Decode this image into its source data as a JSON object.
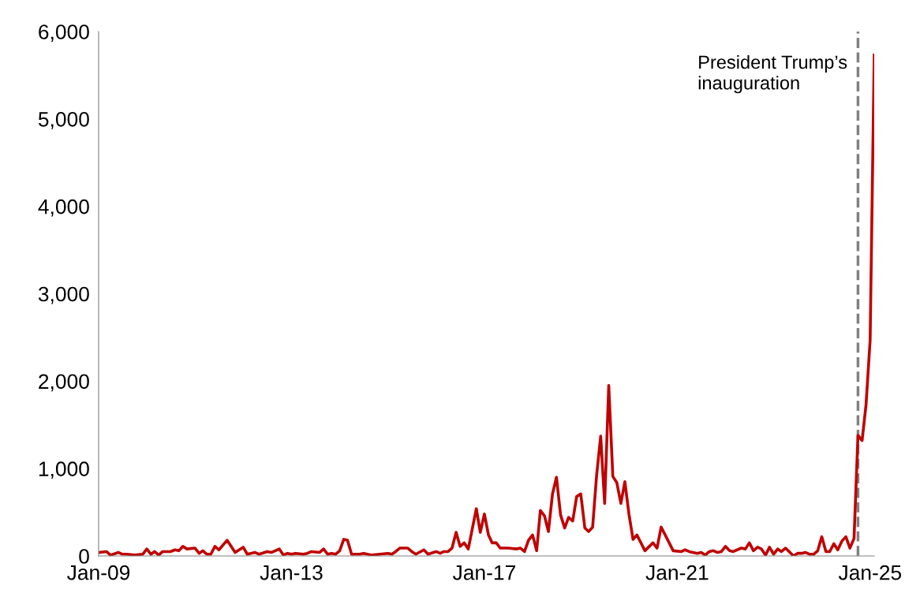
{
  "chart_data": {
    "type": "line",
    "x": [
      "2009-01",
      "2009-03",
      "2009-04",
      "2009-06",
      "2009-07",
      "2009-08",
      "2009-10",
      "2009-12",
      "2010-01",
      "2010-02",
      "2010-03",
      "2010-04",
      "2010-05",
      "2010-07",
      "2010-08",
      "2010-09",
      "2010-10",
      "2010-11",
      "2011-01",
      "2011-02",
      "2011-03",
      "2011-04",
      "2011-05",
      "2011-06",
      "2011-07",
      "2011-09",
      "2011-11",
      "2012-01",
      "2012-02",
      "2012-04",
      "2012-05",
      "2012-07",
      "2012-08",
      "2012-10",
      "2012-11",
      "2012-12",
      "2013-01",
      "2013-02",
      "2013-04",
      "2013-05",
      "2013-06",
      "2013-08",
      "2013-09",
      "2013-10",
      "2013-11",
      "2013-12",
      "2014-01",
      "2014-02",
      "2014-03",
      "2014-04",
      "2014-06",
      "2014-07",
      "2014-09",
      "2014-11",
      "2015-01",
      "2015-02",
      "2015-03",
      "2015-04",
      "2015-06",
      "2015-07",
      "2015-08",
      "2015-10",
      "2015-11",
      "2016-01",
      "2016-02",
      "2016-03",
      "2016-04",
      "2016-05",
      "2016-06",
      "2016-07",
      "2016-08",
      "2016-09",
      "2016-11",
      "2016-12",
      "2017-01",
      "2017-02",
      "2017-03",
      "2017-04",
      "2017-05",
      "2017-07",
      "2017-09",
      "2017-10",
      "2017-11",
      "2017-12",
      "2018-01",
      "2018-02",
      "2018-03",
      "2018-04",
      "2018-05",
      "2018-06",
      "2018-07",
      "2018-08",
      "2018-09",
      "2018-10",
      "2018-11",
      "2018-12",
      "2019-01",
      "2019-02",
      "2019-03",
      "2019-04",
      "2019-05",
      "2019-06",
      "2019-07",
      "2019-08",
      "2019-09",
      "2019-10",
      "2019-11",
      "2019-12",
      "2020-01",
      "2020-02",
      "2020-03",
      "2020-04",
      "2020-05",
      "2020-07",
      "2020-08",
      "2020-09",
      "2020-11",
      "2020-12",
      "2021-02",
      "2021-03",
      "2021-04",
      "2021-06",
      "2021-07",
      "2021-08",
      "2021-09",
      "2021-10",
      "2021-11",
      "2021-12",
      "2022-01",
      "2022-02",
      "2022-03",
      "2022-05",
      "2022-06",
      "2022-07",
      "2022-08",
      "2022-09",
      "2022-10",
      "2022-11",
      "2022-12",
      "2023-01",
      "2023-02",
      "2023-03",
      "2023-04",
      "2023-06",
      "2023-07",
      "2023-08",
      "2023-09",
      "2023-10",
      "2023-11",
      "2023-12",
      "2024-01",
      "2024-02",
      "2024-03",
      "2024-04",
      "2024-05",
      "2024-06",
      "2024-07",
      "2024-08",
      "2024-09",
      "2024-10",
      "2024-11",
      "2024-12",
      "2025-01",
      "2025-02"
    ],
    "series": [
      {
        "color": "#c00000",
        "values": [
          40,
          50,
          10,
          40,
          20,
          20,
          10,
          20,
          80,
          20,
          50,
          10,
          50,
          50,
          70,
          60,
          110,
          80,
          90,
          30,
          60,
          20,
          20,
          110,
          70,
          180,
          40,
          100,
          20,
          40,
          20,
          50,
          40,
          80,
          10,
          30,
          20,
          30,
          20,
          30,
          50,
          40,
          80,
          20,
          30,
          20,
          60,
          190,
          180,
          20,
          20,
          30,
          10,
          20,
          30,
          20,
          50,
          90,
          90,
          50,
          20,
          70,
          20,
          50,
          30,
          50,
          50,
          90,
          270,
          110,
          150,
          80,
          540,
          270,
          480,
          240,
          150,
          150,
          90,
          90,
          80,
          90,
          50,
          180,
          240,
          60,
          520,
          460,
          280,
          710,
          900,
          470,
          320,
          440,
          400,
          680,
          710,
          320,
          280,
          330,
          920,
          1370,
          600,
          1950,
          910,
          840,
          600,
          850,
          480,
          190,
          240,
          150,
          60,
          150,
          90,
          330,
          150,
          60,
          50,
          70,
          50,
          30,
          40,
          10,
          50,
          60,
          40,
          50,
          110,
          60,
          50,
          90,
          80,
          150,
          60,
          100,
          80,
          10,
          100,
          20,
          80,
          50,
          90,
          0,
          30,
          30,
          40,
          20,
          20,
          60,
          220,
          50,
          50,
          140,
          70,
          170,
          220,
          90,
          200,
          1380,
          1320,
          1730,
          2470,
          5730
        ]
      }
    ],
    "xlim": [
      "2009-01",
      "2025-02"
    ],
    "xticks": [
      {
        "value": "2009-01",
        "label": "Jan-09"
      },
      {
        "value": "2013-01",
        "label": "Jan-13"
      },
      {
        "value": "2017-01",
        "label": "Jan-17"
      },
      {
        "value": "2021-01",
        "label": "Jan-21"
      },
      {
        "value": "2025-01",
        "label": "Jan-25"
      }
    ],
    "ylim": [
      0,
      6000
    ],
    "yticks": [
      {
        "value": 0,
        "label": "0"
      },
      {
        "value": 1000,
        "label": "1,000"
      },
      {
        "value": 2000,
        "label": "2,000"
      },
      {
        "value": 3000,
        "label": "3,000"
      },
      {
        "value": 4000,
        "label": "4,000"
      },
      {
        "value": 5000,
        "label": "5,000"
      },
      {
        "value": 6000,
        "label": "6,000"
      }
    ],
    "ref_lines": [
      {
        "axis": "x",
        "value": "2024-10",
        "label": "President Trump’s\ninauguration",
        "color": "#808080",
        "line_style": "dashed"
      }
    ],
    "grid": false,
    "legend": false
  }
}
